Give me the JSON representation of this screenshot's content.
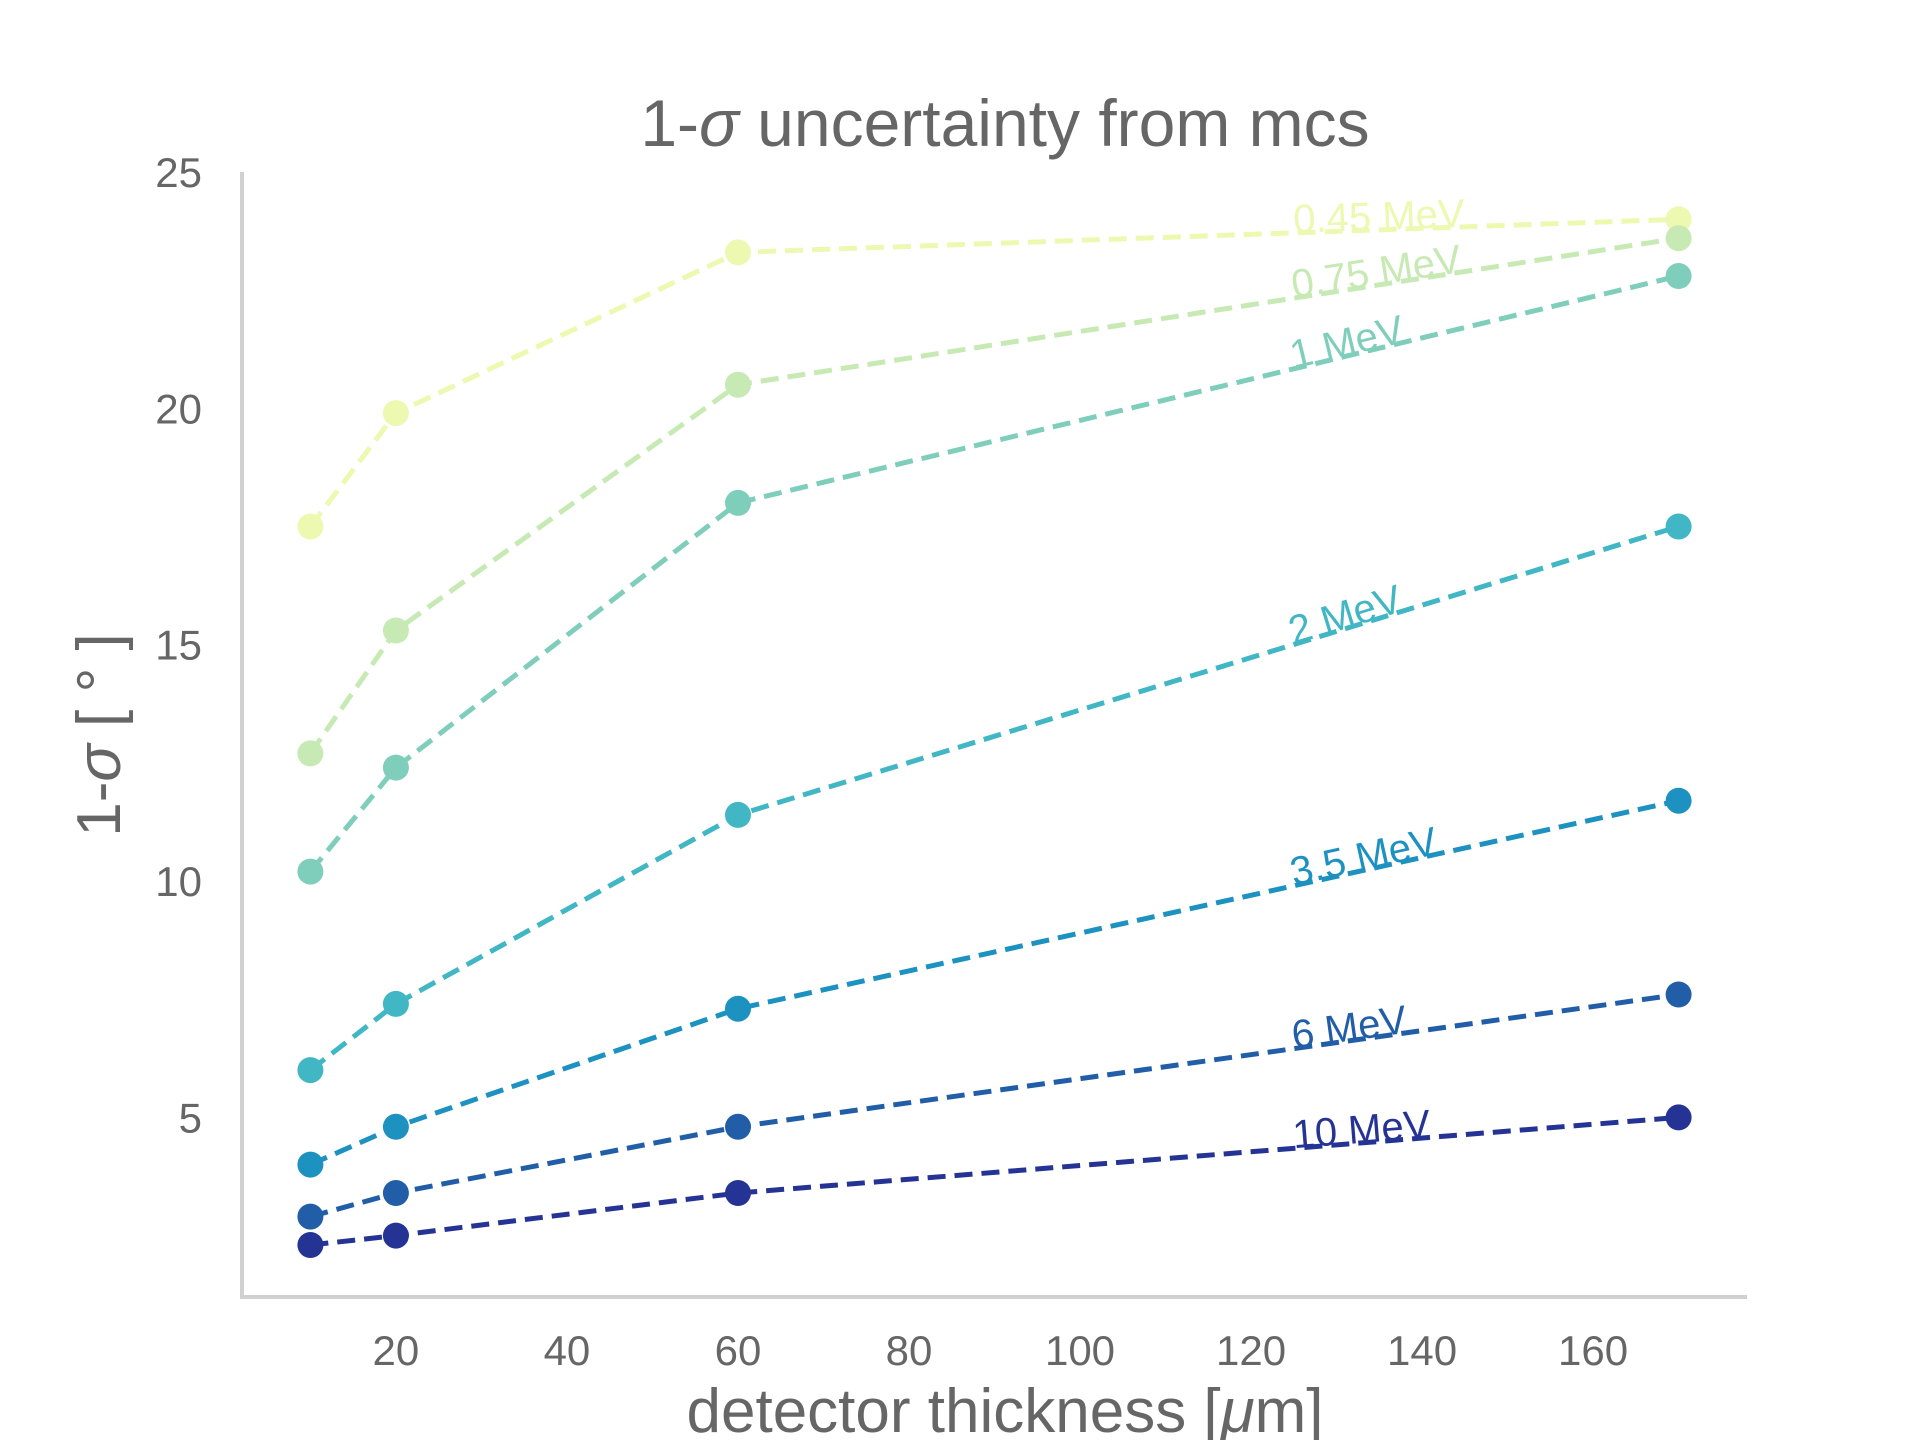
{
  "chart_data": {
    "type": "line",
    "title_prefix": "1-",
    "title_symbol": "σ",
    "title_suffix": " uncertainty from mcs",
    "xlabel_prefix": "detector thickness [",
    "xlabel_symbol": "μ",
    "xlabel_suffix": "m]",
    "ylabel_prefix": "1-",
    "ylabel_symbol": "σ",
    "ylabel_suffix": " [ ° ]",
    "x": [
      10,
      20,
      60,
      170
    ],
    "xlim": [
      2,
      178
    ],
    "ylim": [
      1.2,
      25
    ],
    "xticks": [
      "20",
      "40",
      "60",
      "80",
      "100",
      "120",
      "140",
      "160"
    ],
    "yticks": [
      "5",
      "10",
      "15",
      "20",
      "25"
    ],
    "grid": false,
    "line_style": "dashed",
    "series": [
      {
        "name": "0.45 MeV",
        "color": "#edf8b1",
        "values": [
          17.5,
          19.9,
          23.3,
          24.0
        ]
      },
      {
        "name": "0.75 MeV",
        "color": "#c7e9b4",
        "values": [
          12.7,
          15.3,
          20.5,
          23.6
        ]
      },
      {
        "name": "1 MeV",
        "color": "#7fcdbb",
        "values": [
          10.2,
          12.4,
          18.0,
          22.8
        ]
      },
      {
        "name": "2 MeV",
        "color": "#41b6c4",
        "values": [
          6.0,
          7.4,
          11.4,
          17.5
        ]
      },
      {
        "name": "3.5 MeV",
        "color": "#1d91c0",
        "values": [
          4.0,
          4.8,
          7.3,
          11.7
        ]
      },
      {
        "name": "6 MeV",
        "color": "#225ea8",
        "values": [
          2.9,
          3.4,
          4.8,
          7.6
        ]
      },
      {
        "name": "10 MeV",
        "color": "#253494",
        "values": [
          2.3,
          2.5,
          3.4,
          5.0
        ]
      }
    ]
  }
}
